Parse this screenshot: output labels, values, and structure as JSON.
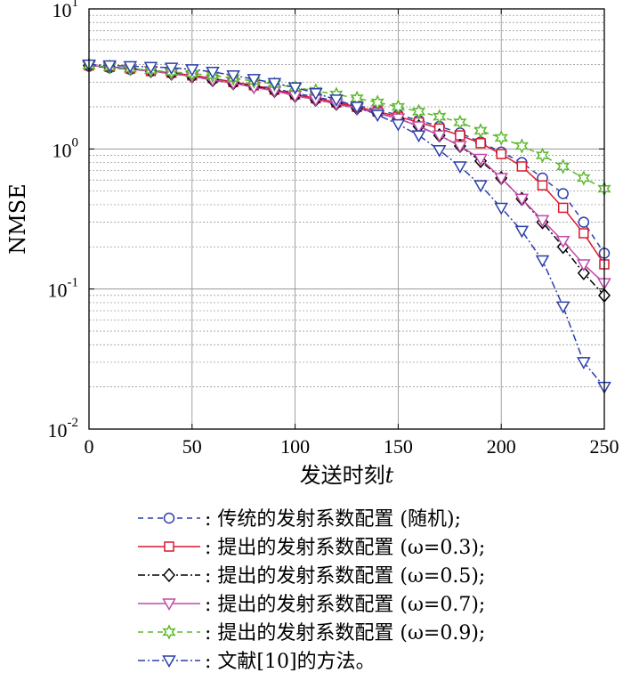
{
  "chart_data": {
    "type": "line",
    "xlabel": "发送时刻",
    "xlabel_var": "t",
    "ylabel": "NMSE",
    "xlim": [
      0,
      250
    ],
    "ylim": [
      0.01,
      10
    ],
    "yscale": "log",
    "grid": true,
    "legend_position": "below",
    "x_ticks": [
      0,
      50,
      100,
      150,
      200,
      250
    ],
    "x_tick_labels": [
      "0",
      "50",
      "100",
      "150",
      "200",
      "250"
    ],
    "y_ticks": [
      0.01,
      0.1,
      1,
      10
    ],
    "y_tick_labels": [
      {
        "base": "10",
        "exp": "-2"
      },
      {
        "base": "10",
        "exp": "-1"
      },
      {
        "base": "10",
        "exp": "0"
      },
      {
        "base": "10",
        "exp": "1"
      }
    ],
    "series": [
      {
        "name": ": 传统的发射系数配置 (随机);",
        "color": "#2b3fa8",
        "dash": "6,5",
        "marker": "circle",
        "x": [
          0,
          10,
          20,
          30,
          40,
          50,
          60,
          70,
          80,
          90,
          100,
          110,
          120,
          130,
          140,
          150,
          160,
          170,
          180,
          190,
          200,
          210,
          220,
          230,
          240,
          250
        ],
        "y": [
          3.9,
          3.8,
          3.7,
          3.6,
          3.5,
          3.35,
          3.2,
          3.0,
          2.85,
          2.7,
          2.5,
          2.35,
          2.2,
          2.05,
          1.9,
          1.75,
          1.6,
          1.45,
          1.3,
          1.12,
          0.95,
          0.8,
          0.62,
          0.48,
          0.3,
          0.18
        ]
      },
      {
        "name": ": 提出的发射系数配置 (ω=0.3);",
        "color": "#d9182d",
        "dash": "",
        "marker": "square",
        "x": [
          0,
          10,
          20,
          30,
          40,
          50,
          60,
          70,
          80,
          90,
          100,
          110,
          120,
          130,
          140,
          150,
          160,
          170,
          180,
          190,
          200,
          210,
          220,
          230,
          240,
          250
        ],
        "y": [
          3.95,
          3.85,
          3.75,
          3.6,
          3.5,
          3.35,
          3.2,
          3.0,
          2.85,
          2.65,
          2.45,
          2.3,
          2.15,
          2.0,
          1.85,
          1.7,
          1.55,
          1.4,
          1.25,
          1.1,
          0.92,
          0.75,
          0.55,
          0.38,
          0.25,
          0.15
        ]
      },
      {
        "name": ": 提出的发射系数配置 (ω=0.5);",
        "color": "#000000",
        "dash": "8,3,2,3",
        "marker": "diamond",
        "x": [
          0,
          10,
          20,
          30,
          40,
          50,
          60,
          70,
          80,
          90,
          100,
          110,
          120,
          130,
          140,
          150,
          160,
          170,
          180,
          190,
          200,
          210,
          220,
          230,
          240,
          250
        ],
        "y": [
          3.95,
          3.85,
          3.75,
          3.6,
          3.45,
          3.3,
          3.1,
          2.95,
          2.8,
          2.6,
          2.4,
          2.25,
          2.1,
          1.95,
          1.8,
          1.65,
          1.45,
          1.25,
          1.05,
          0.82,
          0.62,
          0.44,
          0.3,
          0.2,
          0.13,
          0.09
        ]
      },
      {
        "name": ": 提出的发射系数配置 (ω=0.7);",
        "color": "#c04aaa",
        "dash": "",
        "marker": "triangle-down",
        "x": [
          0,
          10,
          20,
          30,
          40,
          50,
          60,
          70,
          80,
          90,
          100,
          110,
          120,
          130,
          140,
          150,
          160,
          170,
          180,
          190,
          200,
          210,
          220,
          230,
          240,
          250
        ],
        "y": [
          3.95,
          3.85,
          3.7,
          3.6,
          3.45,
          3.3,
          3.1,
          2.95,
          2.75,
          2.6,
          2.4,
          2.25,
          2.1,
          1.95,
          1.8,
          1.65,
          1.45,
          1.25,
          1.05,
          0.85,
          0.62,
          0.44,
          0.31,
          0.22,
          0.15,
          0.11
        ]
      },
      {
        "name": ": 提出的发射系数配置 (ω=0.9);",
        "color": "#5cb82e",
        "dash": "6,5",
        "marker": "star",
        "x": [
          0,
          10,
          20,
          30,
          40,
          50,
          60,
          70,
          80,
          90,
          100,
          110,
          120,
          130,
          140,
          150,
          160,
          170,
          180,
          190,
          200,
          210,
          220,
          230,
          240,
          250
        ],
        "y": [
          3.95,
          3.85,
          3.75,
          3.65,
          3.55,
          3.45,
          3.35,
          3.2,
          3.05,
          2.9,
          2.75,
          2.6,
          2.45,
          2.3,
          2.15,
          2.0,
          1.85,
          1.7,
          1.55,
          1.35,
          1.2,
          1.05,
          0.9,
          0.75,
          0.62,
          0.52
        ]
      },
      {
        "name": ": 文献[10]的方法。",
        "color": "#2b3fa8",
        "dash": "8,3,2,3",
        "marker": "triangle-down",
        "x": [
          0,
          10,
          20,
          30,
          40,
          50,
          60,
          70,
          80,
          90,
          100,
          110,
          120,
          130,
          140,
          150,
          160,
          170,
          180,
          190,
          200,
          210,
          220,
          230,
          240,
          250
        ],
        "y": [
          4.0,
          3.95,
          3.9,
          3.85,
          3.8,
          3.7,
          3.55,
          3.35,
          3.15,
          2.95,
          2.75,
          2.5,
          2.25,
          2.0,
          1.75,
          1.5,
          1.25,
          0.98,
          0.75,
          0.55,
          0.38,
          0.26,
          0.16,
          0.075,
          0.03,
          0.02
        ]
      }
    ]
  }
}
